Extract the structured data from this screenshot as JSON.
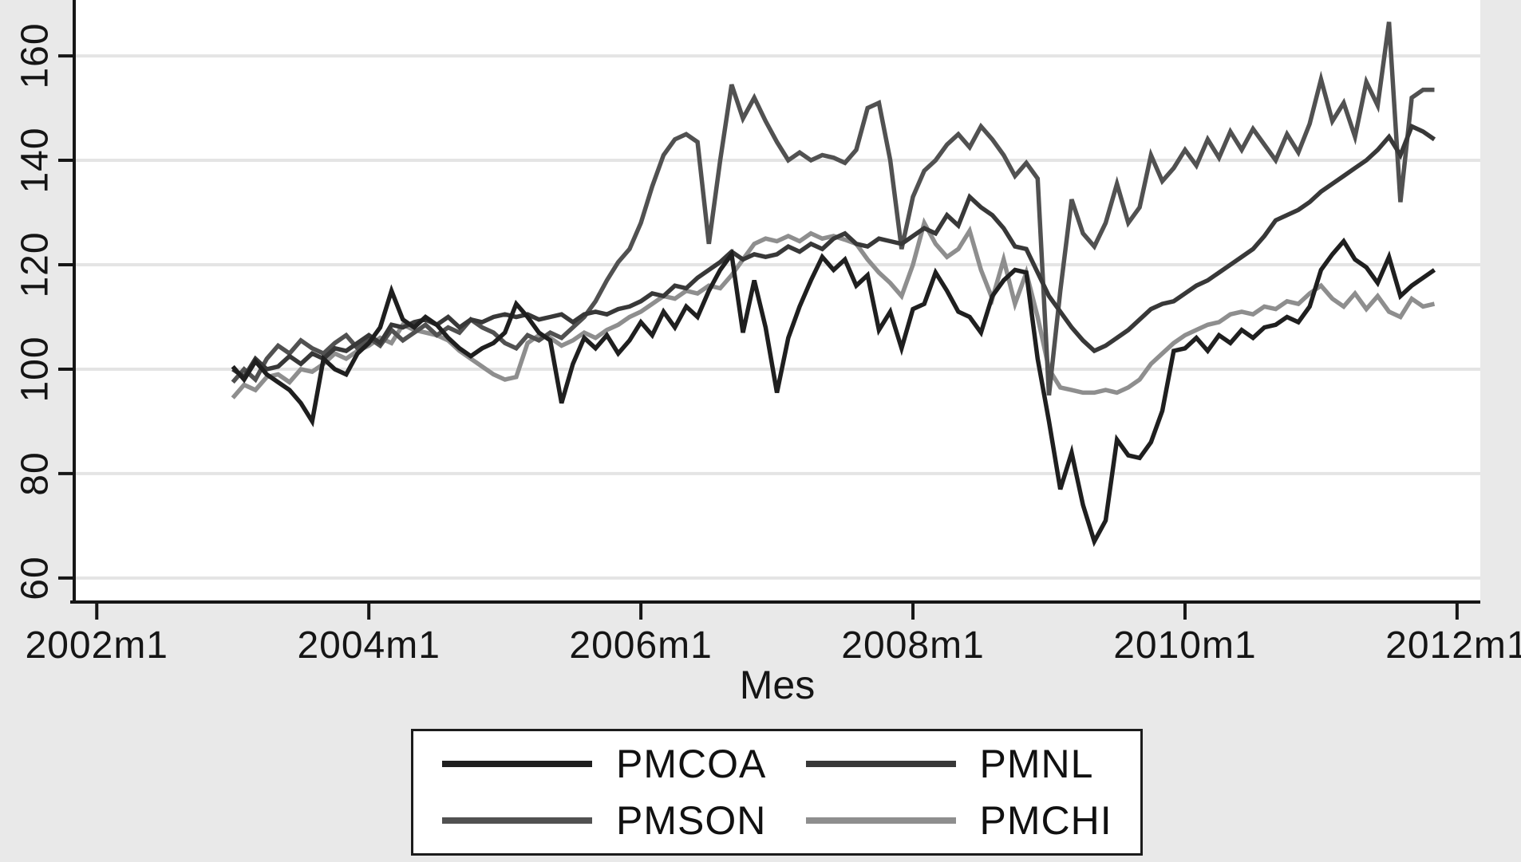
{
  "figure": {
    "x_axis_title": "Mes",
    "background_color": "#e9e9e9",
    "plot_background_color": "#ffffff",
    "axis_line_color": "#161616",
    "gridline_color": "#e4e4e4",
    "text_color": "#151515"
  },
  "chart_data": {
    "type": "line",
    "title": "",
    "xlabel": "Mes",
    "ylabel": "",
    "grid": "horizontal",
    "legend_position": "bottom",
    "x_ticks": [
      "2002m1",
      "2004m1",
      "2006m1",
      "2008m1",
      "2010m1",
      "2012m1"
    ],
    "x_tick_months": [
      0,
      24,
      48,
      72,
      96,
      120
    ],
    "y_ticks": [
      60,
      80,
      100,
      120,
      140,
      160
    ],
    "xlim_months": [
      -1.99,
      122.05
    ],
    "ylim": [
      55.4,
      170.7
    ],
    "x_start": "2003m1",
    "x_end": "2011m11",
    "x_step": "1 month",
    "data_start_month": 12,
    "series": [
      {
        "name": "PMCOA",
        "color": "#1f1f1f",
        "values": [
          100.5,
          98,
          101.5,
          99,
          97.5,
          96,
          93.5,
          90,
          102,
          100,
          99,
          103,
          105,
          108,
          115,
          109.5,
          108,
          110,
          108.5,
          106,
          104,
          102.5,
          104,
          105,
          107,
          112.5,
          110,
          107,
          105.5,
          93.5,
          101,
          106,
          104,
          106.5,
          103,
          105.5,
          109,
          106.5,
          111,
          108,
          112,
          110,
          115,
          119,
          122,
          107,
          117,
          108,
          95.5,
          106,
          112,
          117,
          121.5,
          119,
          121,
          116,
          118,
          107.5,
          111,
          104,
          111.5,
          112.5,
          118.5,
          115,
          111,
          110,
          107,
          114,
          117,
          119,
          118.5,
          102,
          90,
          77,
          84,
          74,
          67,
          71,
          86.5,
          83.5,
          83,
          86,
          92,
          103.5,
          104,
          106,
          103.5,
          106.5,
          105,
          107.5,
          106,
          108,
          108.5,
          110,
          109,
          112,
          119,
          122,
          124.5,
          121,
          119.5,
          116.5,
          121.5,
          114,
          116,
          117.5,
          119
        ]
      },
      {
        "name": "PMNL",
        "color": "#383838",
        "values": [
          100,
          98.5,
          102,
          100,
          100.5,
          102.5,
          101,
          103,
          102,
          104,
          103.5,
          105,
          106.5,
          105,
          108.5,
          108,
          109,
          109.5,
          108.5,
          110,
          108,
          109.5,
          109,
          110,
          110.5,
          110,
          110.5,
          109.5,
          110,
          110.5,
          109,
          110.5,
          111,
          110.5,
          111.5,
          112,
          113,
          114.5,
          114,
          116,
          115.5,
          117.5,
          119,
          120.5,
          122.5,
          121,
          122,
          121.5,
          122,
          123.5,
          122.5,
          124,
          123,
          125,
          126,
          124,
          123.5,
          125,
          124.5,
          124,
          125.5,
          127,
          126,
          129.5,
          127.5,
          133,
          131,
          129.5,
          127,
          123.5,
          123,
          118.5,
          114,
          111,
          108,
          105.5,
          103.5,
          104.5,
          106,
          107.5,
          109.5,
          111.5,
          112.5,
          113,
          114.5,
          116,
          117,
          118.5,
          120,
          121.5,
          123,
          125.5,
          128.5,
          129.5,
          130.5,
          132,
          134,
          135.5,
          137,
          138.5,
          140,
          142,
          144.5,
          141,
          146.5,
          145.5,
          144
        ]
      },
      {
        "name": "PMSON",
        "color": "#515151",
        "values": [
          97.5,
          100,
          98,
          102,
          104.5,
          103,
          105.5,
          104,
          103,
          105,
          106.5,
          104,
          106,
          104.5,
          107.5,
          105.5,
          107,
          108.5,
          106.5,
          108,
          107,
          109.5,
          108,
          107,
          105,
          104,
          106.5,
          105.5,
          107,
          106,
          108,
          110,
          113,
          117,
          120.5,
          123,
          128,
          135,
          141,
          144,
          145,
          143.5,
          124,
          140,
          154.5,
          148,
          152,
          147.5,
          143.5,
          140,
          141.5,
          140,
          141,
          140.5,
          139.5,
          142,
          150,
          151,
          140,
          123,
          133,
          138,
          140,
          143,
          145,
          142.5,
          146.5,
          144,
          141,
          137,
          139.5,
          136.5,
          95,
          115,
          132.5,
          126,
          123.5,
          128,
          135.5,
          128,
          131,
          141,
          136,
          138.5,
          142,
          139,
          144,
          140.5,
          145.5,
          142,
          146,
          143,
          140,
          145,
          141.5,
          147,
          155.5,
          147.5,
          151,
          144.5,
          155,
          150.5,
          166.5,
          132,
          152,
          153.5,
          153.5
        ]
      },
      {
        "name": "PMCHI",
        "color": "#8e8e8e",
        "values": [
          94.5,
          97,
          96,
          98.5,
          99,
          97.5,
          100,
          99.5,
          101,
          103,
          102,
          103.5,
          104.5,
          106,
          105,
          108.5,
          107.5,
          107,
          106.5,
          105.5,
          103.5,
          102,
          100.5,
          99,
          98,
          98.5,
          105,
          106.5,
          106,
          104.5,
          105.5,
          107,
          106,
          107.5,
          108.5,
          110,
          111,
          112.5,
          114,
          113.5,
          115,
          114.5,
          116,
          115.5,
          118,
          121,
          124,
          125,
          124.5,
          125.5,
          124.5,
          126,
          125,
          125.5,
          124.8,
          124,
          121,
          118.5,
          116.5,
          114,
          120,
          128,
          124,
          121.5,
          123,
          126.5,
          119,
          113.5,
          121,
          112.5,
          118.5,
          110,
          100,
          96.5,
          96,
          95.5,
          95.5,
          96,
          95.5,
          96.5,
          98,
          101,
          103,
          105,
          106.5,
          107.5,
          108.5,
          109,
          110.5,
          111,
          110.5,
          112,
          111.5,
          113,
          112.5,
          114.5,
          116,
          113.5,
          112,
          114.5,
          111.5,
          114,
          111,
          110,
          113.5,
          112,
          112.5
        ]
      }
    ]
  }
}
